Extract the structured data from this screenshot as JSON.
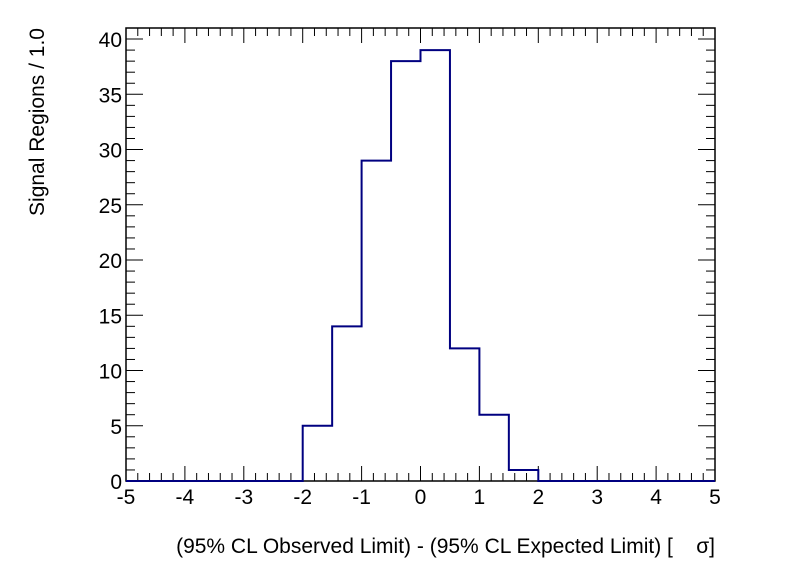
{
  "chart_data": {
    "type": "histogram",
    "title": "",
    "xlabel": "(95% CL Observed Limit) - (95% CL Expected Limit) [    σ]",
    "ylabel": "Signal Regions / 1.0",
    "xlim": [
      -5,
      5
    ],
    "ylim": [
      0,
      41
    ],
    "bin_edges": [
      -5,
      -4.5,
      -4,
      -3.5,
      -3,
      -2.5,
      -2,
      -1.5,
      -1,
      -0.5,
      0,
      0.5,
      1,
      1.5,
      2,
      2.5,
      3,
      3.5,
      4,
      4.5,
      5
    ],
    "counts": [
      0,
      0,
      0,
      0,
      0,
      0,
      5,
      14,
      29,
      38,
      39,
      12,
      6,
      1,
      0,
      0,
      0,
      0,
      0,
      0
    ],
    "x_ticks": [
      -5,
      -4,
      -3,
      -2,
      -1,
      0,
      1,
      2,
      3,
      4,
      5
    ],
    "x_tick_labels": [
      "-5",
      "-4",
      "-3",
      "-2",
      "-1",
      "0",
      "1",
      "2",
      "3",
      "4",
      "5"
    ],
    "y_ticks": [
      0,
      5,
      10,
      15,
      20,
      25,
      30,
      35,
      40
    ],
    "y_tick_labels": [
      "0",
      "5",
      "10",
      "15",
      "20",
      "25",
      "30",
      "35",
      "40"
    ],
    "line_color": "#000080",
    "grid": false,
    "legend": "none"
  }
}
